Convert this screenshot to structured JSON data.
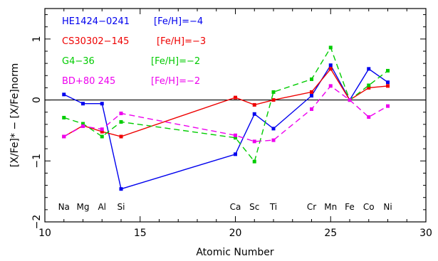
{
  "chart_data": {
    "type": "line",
    "xlabel": "Atomic Number",
    "ylabel": "[X/Fe]* − [X/Fe]norm",
    "xlim": [
      10,
      30
    ],
    "ylim": [
      -2,
      1.5
    ],
    "xticks": [
      10,
      15,
      20,
      25,
      30
    ],
    "yticks": [
      -2,
      -1,
      0,
      1
    ],
    "xticklabels": [
      "10",
      "15",
      "20",
      "25",
      "30"
    ],
    "yticklabels": [
      "−2",
      "−1",
      "0",
      "1"
    ],
    "reference_line": 0,
    "grid": false,
    "legend_position": "top-left",
    "element_labels": [
      {
        "x": 11,
        "label": "Na"
      },
      {
        "x": 12,
        "label": "Mg"
      },
      {
        "x": 13,
        "label": "Al"
      },
      {
        "x": 14,
        "label": "Si"
      },
      {
        "x": 20,
        "label": "Ca"
      },
      {
        "x": 21,
        "label": "Sc"
      },
      {
        "x": 22,
        "label": "Ti"
      },
      {
        "x": 24,
        "label": "Cr"
      },
      {
        "x": 25,
        "label": "Mn"
      },
      {
        "x": 26,
        "label": "Fe"
      },
      {
        "x": 27,
        "label": "Co"
      },
      {
        "x": 28,
        "label": "Ni"
      }
    ],
    "series": [
      {
        "name": "HE1424−0241",
        "feh": "[Fe/H]=−4",
        "color": "#0000ee",
        "dash": "solid",
        "points": [
          [
            11,
            0.09
          ],
          [
            12,
            -0.06
          ],
          [
            13,
            -0.06
          ],
          [
            14,
            -1.46
          ],
          [
            20,
            -0.89
          ],
          [
            21,
            -0.23
          ],
          [
            22,
            -0.47
          ],
          [
            24,
            0.07
          ],
          [
            25,
            0.57
          ],
          [
            26,
            0.0
          ],
          [
            27,
            0.51
          ],
          [
            28,
            0.29
          ]
        ]
      },
      {
        "name": "CS30302−145",
        "feh": "[Fe/H]=−3",
        "color": "#ee0000",
        "dash": "solid",
        "points": [
          [
            11,
            -0.6
          ],
          [
            12,
            -0.42
          ],
          [
            13,
            -0.52
          ],
          [
            14,
            -0.6
          ],
          [
            20,
            0.04
          ],
          [
            21,
            -0.08
          ],
          [
            22,
            0.0
          ],
          [
            24,
            0.13
          ],
          [
            25,
            0.51
          ],
          [
            26,
            0.0
          ],
          [
            27,
            0.2
          ],
          [
            28,
            0.23
          ]
        ]
      },
      {
        "name": "G4−36",
        "feh": "[Fe/H]=−2",
        "color": "#00cc00",
        "dash": "dashed",
        "points": [
          [
            11,
            -0.29
          ],
          [
            12,
            -0.39
          ],
          [
            13,
            -0.6
          ],
          [
            14,
            -0.36
          ],
          [
            20,
            -0.62
          ],
          [
            21,
            -1.01
          ],
          [
            22,
            0.13
          ],
          [
            24,
            0.34
          ],
          [
            25,
            0.86
          ],
          [
            26,
            0.0
          ],
          [
            27,
            0.24
          ],
          [
            28,
            0.48
          ]
        ]
      },
      {
        "name": "BD+80 245",
        "feh": "[Fe/H]=−2",
        "color": "#ee00ee",
        "dash": "dashed",
        "points": [
          [
            11,
            -0.6
          ],
          [
            12,
            -0.43
          ],
          [
            13,
            -0.48
          ],
          [
            14,
            -0.22
          ],
          [
            20,
            -0.58
          ],
          [
            21,
            -0.68
          ],
          [
            22,
            -0.66
          ],
          [
            24,
            -0.15
          ],
          [
            25,
            0.23
          ],
          [
            26,
            0.0
          ],
          [
            27,
            -0.28
          ],
          [
            28,
            -0.1
          ]
        ]
      }
    ]
  }
}
